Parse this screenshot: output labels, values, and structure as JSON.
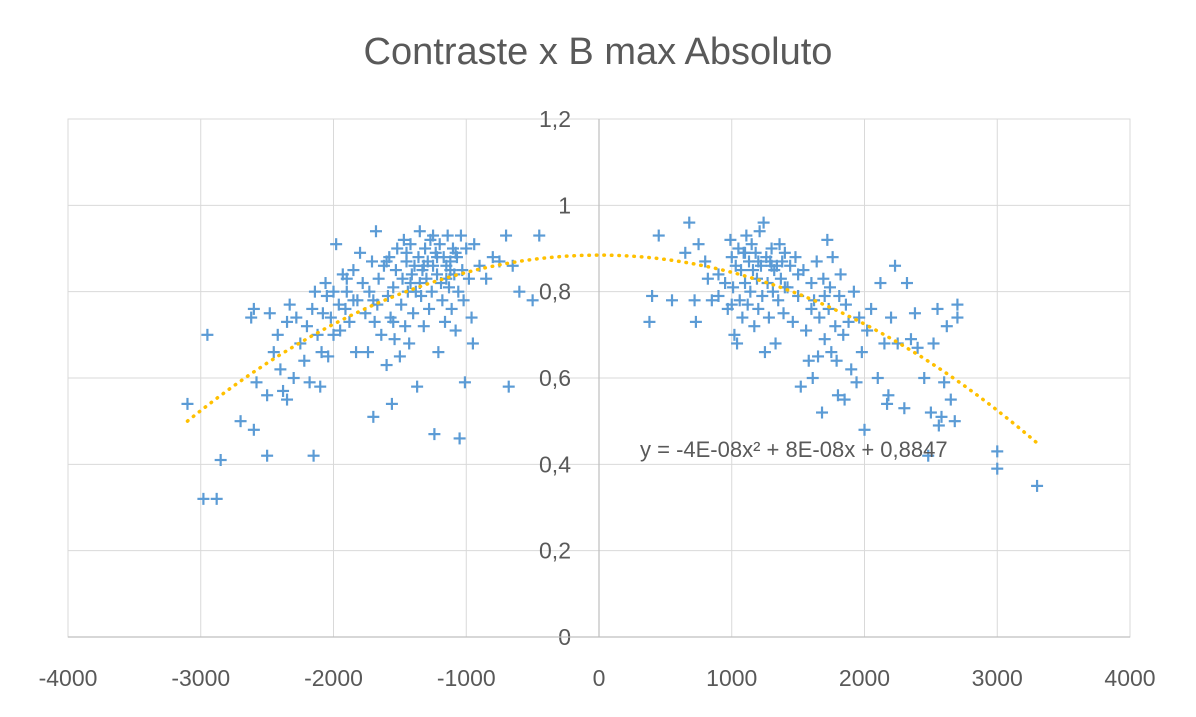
{
  "chart_data": {
    "type": "scatter",
    "title": "Contraste x B max Absoluto",
    "xlabel": "",
    "ylabel": "",
    "xlim": [
      -4000,
      4000
    ],
    "ylim": [
      0,
      1.2
    ],
    "x_ticks": [
      "-4000",
      "-3000",
      "-2000",
      "-1000",
      "0",
      "1000",
      "2000",
      "3000",
      "4000"
    ],
    "y_ticks": [
      "0",
      "0,2",
      "0,4",
      "0,6",
      "0,8",
      "1",
      "1,2"
    ],
    "grid": true,
    "legend": "none",
    "marker": "+",
    "series_color": "#5B9BD5",
    "trendline": {
      "type": "polynomial",
      "coefficients": {
        "a": -4e-08,
        "b": 8e-08,
        "c": 0.8847
      },
      "x_range": [
        -3100,
        3300
      ],
      "equation_label": "y = -4E-08x² + 8E-08x + 0,8847",
      "color": "#FFC000",
      "style": "dotted"
    },
    "series": [
      {
        "points": [
          [
            -3100,
            0.54
          ],
          [
            -2980,
            0.32
          ],
          [
            -2950,
            0.7
          ],
          [
            -2880,
            0.32
          ],
          [
            -2850,
            0.41
          ],
          [
            -2700,
            0.5
          ],
          [
            -2600,
            0.48
          ],
          [
            -2580,
            0.59
          ],
          [
            -2620,
            0.74
          ],
          [
            -2600,
            0.76
          ],
          [
            -2500,
            0.42
          ],
          [
            -2500,
            0.56
          ],
          [
            -2480,
            0.75
          ],
          [
            -2450,
            0.66
          ],
          [
            -2420,
            0.7
          ],
          [
            -2400,
            0.62
          ],
          [
            -2380,
            0.57
          ],
          [
            -2350,
            0.55
          ],
          [
            -2350,
            0.73
          ],
          [
            -2330,
            0.77
          ],
          [
            -2300,
            0.6
          ],
          [
            -2280,
            0.74
          ],
          [
            -2250,
            0.68
          ],
          [
            -2220,
            0.64
          ],
          [
            -2200,
            0.72
          ],
          [
            -2180,
            0.59
          ],
          [
            -2160,
            0.76
          ],
          [
            -2150,
            0.42
          ],
          [
            -2140,
            0.8
          ],
          [
            -2120,
            0.7
          ],
          [
            -2100,
            0.58
          ],
          [
            -2090,
            0.66
          ],
          [
            -2080,
            0.75
          ],
          [
            -2060,
            0.82
          ],
          [
            -2050,
            0.79
          ],
          [
            -2040,
            0.65
          ],
          [
            -2020,
            0.74
          ],
          [
            -2000,
            0.8
          ],
          [
            -1980,
            0.91
          ],
          [
            -1960,
            0.77
          ],
          [
            -1950,
            0.71
          ],
          [
            -1930,
            0.84
          ],
          [
            -1910,
            0.76
          ],
          [
            -1900,
            0.8
          ],
          [
            -1880,
            0.73
          ],
          [
            -1850,
            0.85
          ],
          [
            -1830,
            0.66
          ],
          [
            -1820,
            0.78
          ],
          [
            -1800,
            0.89
          ],
          [
            -1780,
            0.82
          ],
          [
            -1760,
            0.75
          ],
          [
            -1740,
            0.66
          ],
          [
            -1730,
            0.8
          ],
          [
            -1710,
            0.87
          ],
          [
            -1700,
            0.51
          ],
          [
            -1690,
            0.73
          ],
          [
            -1680,
            0.94
          ],
          [
            -1670,
            0.77
          ],
          [
            -1660,
            0.83
          ],
          [
            -1640,
            0.7
          ],
          [
            -1620,
            0.86
          ],
          [
            -1600,
            0.63
          ],
          [
            -1590,
            0.79
          ],
          [
            -1580,
            0.88
          ],
          [
            -1570,
            0.74
          ],
          [
            -1560,
            0.54
          ],
          [
            -1550,
            0.81
          ],
          [
            -1540,
            0.69
          ],
          [
            -1530,
            0.85
          ],
          [
            -1520,
            0.9
          ],
          [
            -1500,
            0.65
          ],
          [
            -1490,
            0.77
          ],
          [
            -1480,
            0.83
          ],
          [
            -1470,
            0.92
          ],
          [
            -1460,
            0.72
          ],
          [
            -1450,
            0.87
          ],
          [
            -1440,
            0.8
          ],
          [
            -1430,
            0.68
          ],
          [
            -1420,
            0.91
          ],
          [
            -1410,
            0.84
          ],
          [
            -1400,
            0.75
          ],
          [
            -1390,
            0.86
          ],
          [
            -1380,
            0.8
          ],
          [
            -1370,
            0.58
          ],
          [
            -1360,
            0.88
          ],
          [
            -1350,
            0.94
          ],
          [
            -1340,
            0.79
          ],
          [
            -1330,
            0.85
          ],
          [
            -1320,
            0.72
          ],
          [
            -1310,
            0.9
          ],
          [
            -1300,
            0.83
          ],
          [
            -1290,
            0.87
          ],
          [
            -1280,
            0.76
          ],
          [
            -1270,
            0.92
          ],
          [
            -1260,
            0.8
          ],
          [
            -1250,
            0.86
          ],
          [
            -1240,
            0.47
          ],
          [
            -1230,
            0.89
          ],
          [
            -1220,
            0.84
          ],
          [
            -1210,
            0.66
          ],
          [
            -1200,
            0.91
          ],
          [
            -1190,
            0.82
          ],
          [
            -1180,
            0.78
          ],
          [
            -1170,
            0.88
          ],
          [
            -1160,
            0.73
          ],
          [
            -1150,
            0.86
          ],
          [
            -1140,
            0.93
          ],
          [
            -1130,
            0.81
          ],
          [
            -1120,
            0.87
          ],
          [
            -1110,
            0.76
          ],
          [
            -1100,
            0.9
          ],
          [
            -1090,
            0.84
          ],
          [
            -1080,
            0.71
          ],
          [
            -1070,
            0.88
          ],
          [
            -1060,
            0.8
          ],
          [
            -1050,
            0.46
          ],
          [
            -1040,
            0.93
          ],
          [
            -1030,
            0.85
          ],
          [
            -1020,
            0.78
          ],
          [
            -1010,
            0.59
          ],
          [
            -1000,
            0.9
          ],
          [
            -980,
            0.83
          ],
          [
            -960,
            0.74
          ],
          [
            -950,
            0.68
          ],
          [
            -940,
            0.91
          ],
          [
            -900,
            0.86
          ],
          [
            -850,
            0.83
          ],
          [
            -800,
            0.88
          ],
          [
            -750,
            0.87
          ],
          [
            -700,
            0.93
          ],
          [
            -680,
            0.58
          ],
          [
            -650,
            0.86
          ],
          [
            -600,
            0.8
          ],
          [
            -500,
            0.78
          ],
          [
            -450,
            0.93
          ],
          [
            -1600,
            0.87
          ],
          [
            -1350,
            0.82
          ],
          [
            -1250,
            0.93
          ],
          [
            -1150,
            0.83
          ],
          [
            -1450,
            0.89
          ],
          [
            -1550,
            0.73
          ],
          [
            -1700,
            0.78
          ],
          [
            -1850,
            0.78
          ],
          [
            -1900,
            0.83
          ],
          [
            -2000,
            0.7
          ],
          [
            -1420,
            0.82
          ],
          [
            -1320,
            0.86
          ],
          [
            -1220,
            0.88
          ],
          [
            -1120,
            0.85
          ],
          [
            -1080,
            0.89
          ]
        ]
      },
      {
        "points": [
          [
            380,
            0.73
          ],
          [
            400,
            0.79
          ],
          [
            450,
            0.93
          ],
          [
            550,
            0.78
          ],
          [
            650,
            0.89
          ],
          [
            680,
            0.96
          ],
          [
            720,
            0.78
          ],
          [
            730,
            0.73
          ],
          [
            750,
            0.91
          ],
          [
            800,
            0.87
          ],
          [
            820,
            0.83
          ],
          [
            850,
            0.78
          ],
          [
            900,
            0.84
          ],
          [
            950,
            0.82
          ],
          [
            970,
            0.76
          ],
          [
            990,
            0.92
          ],
          [
            1000,
            0.88
          ],
          [
            1010,
            0.81
          ],
          [
            1020,
            0.7
          ],
          [
            1030,
            0.86
          ],
          [
            1040,
            0.68
          ],
          [
            1050,
            0.9
          ],
          [
            1060,
            0.78
          ],
          [
            1070,
            0.85
          ],
          [
            1080,
            0.74
          ],
          [
            1090,
            0.89
          ],
          [
            1100,
            0.82
          ],
          [
            1110,
            0.93
          ],
          [
            1120,
            0.77
          ],
          [
            1130,
            0.87
          ],
          [
            1140,
            0.8
          ],
          [
            1150,
            0.91
          ],
          [
            1160,
            0.85
          ],
          [
            1170,
            0.72
          ],
          [
            1180,
            0.89
          ],
          [
            1190,
            0.83
          ],
          [
            1200,
            0.76
          ],
          [
            1210,
            0.94
          ],
          [
            1220,
            0.86
          ],
          [
            1230,
            0.79
          ],
          [
            1240,
            0.96
          ],
          [
            1250,
            0.66
          ],
          [
            1260,
            0.88
          ],
          [
            1270,
            0.82
          ],
          [
            1280,
            0.74
          ],
          [
            1290,
            0.87
          ],
          [
            1300,
            0.9
          ],
          [
            1310,
            0.8
          ],
          [
            1320,
            0.85
          ],
          [
            1330,
            0.68
          ],
          [
            1340,
            0.86
          ],
          [
            1350,
            0.78
          ],
          [
            1360,
            0.91
          ],
          [
            1370,
            0.83
          ],
          [
            1380,
            0.87
          ],
          [
            1390,
            0.75
          ],
          [
            1400,
            0.89
          ],
          [
            1420,
            0.81
          ],
          [
            1440,
            0.86
          ],
          [
            1460,
            0.73
          ],
          [
            1480,
            0.88
          ],
          [
            1500,
            0.79
          ],
          [
            1520,
            0.58
          ],
          [
            1540,
            0.85
          ],
          [
            1560,
            0.71
          ],
          [
            1580,
            0.64
          ],
          [
            1600,
            0.82
          ],
          [
            1610,
            0.6
          ],
          [
            1620,
            0.78
          ],
          [
            1640,
            0.87
          ],
          [
            1650,
            0.65
          ],
          [
            1660,
            0.74
          ],
          [
            1680,
            0.52
          ],
          [
            1690,
            0.83
          ],
          [
            1700,
            0.69
          ],
          [
            1720,
            0.92
          ],
          [
            1730,
            0.76
          ],
          [
            1740,
            0.81
          ],
          [
            1750,
            0.66
          ],
          [
            1760,
            0.88
          ],
          [
            1780,
            0.72
          ],
          [
            1790,
            0.64
          ],
          [
            1800,
            0.56
          ],
          [
            1810,
            0.79
          ],
          [
            1820,
            0.84
          ],
          [
            1840,
            0.7
          ],
          [
            1850,
            0.55
          ],
          [
            1860,
            0.77
          ],
          [
            1880,
            0.73
          ],
          [
            1900,
            0.62
          ],
          [
            1920,
            0.8
          ],
          [
            1940,
            0.59
          ],
          [
            1960,
            0.74
          ],
          [
            1980,
            0.66
          ],
          [
            2000,
            0.48
          ],
          [
            2020,
            0.71
          ],
          [
            2050,
            0.76
          ],
          [
            2100,
            0.6
          ],
          [
            2120,
            0.82
          ],
          [
            2150,
            0.68
          ],
          [
            2170,
            0.54
          ],
          [
            2180,
            0.56
          ],
          [
            2200,
            0.74
          ],
          [
            2230,
            0.86
          ],
          [
            2250,
            0.68
          ],
          [
            2300,
            0.53
          ],
          [
            2320,
            0.82
          ],
          [
            2350,
            0.69
          ],
          [
            2380,
            0.75
          ],
          [
            2400,
            0.67
          ],
          [
            2450,
            0.6
          ],
          [
            2480,
            0.42
          ],
          [
            2500,
            0.52
          ],
          [
            2520,
            0.68
          ],
          [
            2550,
            0.76
          ],
          [
            2560,
            0.49
          ],
          [
            2580,
            0.51
          ],
          [
            2600,
            0.59
          ],
          [
            2620,
            0.72
          ],
          [
            2650,
            0.55
          ],
          [
            2680,
            0.5
          ],
          [
            2700,
            0.74
          ],
          [
            2700,
            0.77
          ],
          [
            3000,
            0.39
          ],
          [
            3000,
            0.43
          ],
          [
            3300,
            0.35
          ],
          [
            1100,
            0.89
          ],
          [
            1300,
            0.86
          ],
          [
            1500,
            0.84
          ],
          [
            1700,
            0.79
          ],
          [
            1200,
            0.87
          ],
          [
            1400,
            0.81
          ],
          [
            1600,
            0.76
          ],
          [
            900,
            0.79
          ],
          [
            1000,
            0.77
          ]
        ]
      }
    ]
  }
}
